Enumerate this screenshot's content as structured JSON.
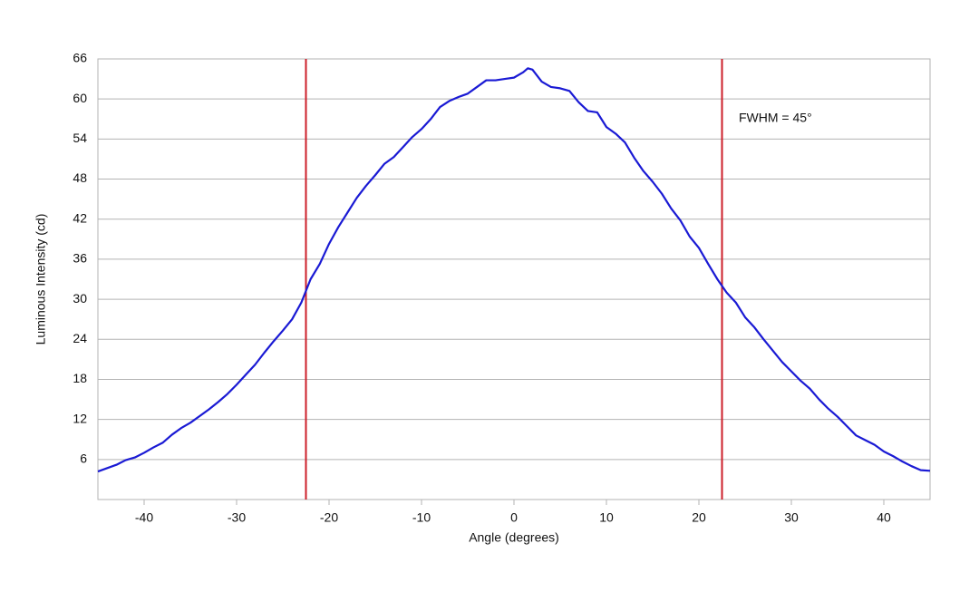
{
  "chart_data": {
    "type": "line",
    "x_label": "Angle (degrees)",
    "y_label": "Luminous Intensity (cd)",
    "annotation": "FWHM = 45°",
    "xlim": [
      -45,
      45
    ],
    "xticks": [
      -40,
      -30,
      -20,
      -10,
      0,
      10,
      20,
      30,
      40
    ],
    "ylim": [
      0,
      66
    ],
    "yticks": [
      6,
      12,
      18,
      24,
      30,
      36,
      42,
      48,
      54,
      60,
      66
    ],
    "grid": true,
    "vlines": [
      -22.5,
      22.5
    ],
    "vline_color": "#cc1f2a",
    "x": [
      -45,
      -43,
      -42,
      -41,
      -40,
      -39,
      -38,
      -37,
      -36,
      -35,
      -34,
      -33,
      -32,
      -31,
      -30,
      -29,
      -28,
      -27,
      -26,
      -25,
      -24,
      -23,
      -22,
      -21,
      -20,
      -19,
      -18,
      -17,
      -16,
      -15,
      -14,
      -13,
      -12,
      -11,
      -10,
      -9,
      -8,
      -7,
      -6,
      -5,
      -4,
      -3,
      -2,
      -1,
      0,
      1,
      1.5,
      2,
      3,
      4,
      5,
      6,
      7,
      8,
      9,
      10,
      11,
      12,
      13,
      14,
      15,
      16,
      17,
      18,
      19,
      20,
      21,
      22,
      23,
      24,
      25,
      26,
      27,
      28,
      29,
      30,
      31,
      32,
      33,
      34,
      35,
      36,
      37,
      38,
      39,
      40,
      41,
      42,
      43,
      44,
      45
    ],
    "series": [
      {
        "color": "#1a1ad4",
        "values": [
          4.2,
          5.2,
          5.9,
          6.3,
          7.0,
          7.8,
          8.5,
          9.7,
          10.7,
          11.5,
          12.5,
          13.5,
          14.6,
          15.8,
          17.2,
          18.7,
          20.2,
          22.0,
          23.7,
          25.3,
          27.0,
          29.5,
          33.0,
          35.3,
          38.3,
          40.8,
          43.0,
          45.2,
          47.0,
          48.6,
          50.3,
          51.3,
          52.8,
          54.3,
          55.5,
          57.0,
          58.8,
          59.7,
          60.3,
          60.8,
          61.8,
          62.8,
          62.8,
          63.0,
          63.2,
          64.0,
          64.6,
          64.4,
          62.6,
          61.8,
          61.6,
          61.2,
          59.5,
          58.2,
          58.0,
          55.8,
          54.8,
          53.5,
          51.2,
          49.2,
          47.6,
          45.8,
          43.6,
          41.8,
          39.4,
          37.7,
          35.3,
          33.0,
          31.0,
          29.5,
          27.3,
          25.8,
          24.0,
          22.3,
          20.6,
          19.2,
          17.8,
          16.6,
          15.0,
          13.6,
          12.4,
          11.0,
          9.6,
          8.9,
          8.2,
          7.2,
          6.5,
          5.7,
          5.0,
          4.4,
          4.3
        ]
      }
    ]
  }
}
